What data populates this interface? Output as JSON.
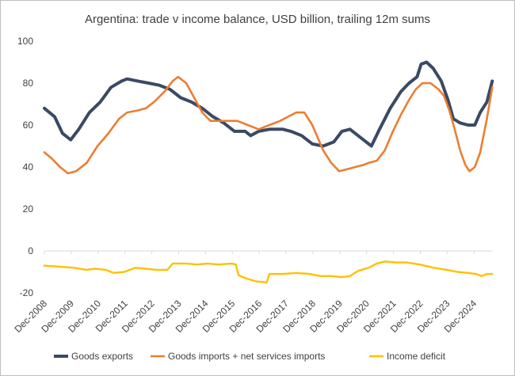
{
  "chart_data": {
    "type": "line",
    "title": "Argentina: trade v income balance, USD billion, trailing 12m sums",
    "xlabel": "",
    "ylabel": "",
    "ylim": [
      -20,
      100
    ],
    "yticks": [
      -20,
      0,
      20,
      40,
      60,
      80,
      100
    ],
    "xlim": [
      2008.92,
      2025.62
    ],
    "x_ticks": [
      {
        "x": 2008.92,
        "label": "Dec-2008"
      },
      {
        "x": 2009.92,
        "label": "Dec-2009"
      },
      {
        "x": 2010.92,
        "label": "Dec-2010"
      },
      {
        "x": 2011.92,
        "label": "Dec-2011"
      },
      {
        "x": 2012.92,
        "label": "Dec-2012"
      },
      {
        "x": 2013.92,
        "label": "Dec-2013"
      },
      {
        "x": 2014.92,
        "label": "Dec-2014"
      },
      {
        "x": 2015.92,
        "label": "Dec-2015"
      },
      {
        "x": 2016.92,
        "label": "Dec-2016"
      },
      {
        "x": 2017.92,
        "label": "Dec-2017"
      },
      {
        "x": 2018.92,
        "label": "Dec-2018"
      },
      {
        "x": 2019.92,
        "label": "Dec-2019"
      },
      {
        "x": 2020.92,
        "label": "Dec-2020"
      },
      {
        "x": 2021.92,
        "label": "Dec-2021"
      },
      {
        "x": 2022.92,
        "label": "Dec-2022"
      },
      {
        "x": 2023.92,
        "label": "Dec-2023"
      },
      {
        "x": 2024.92,
        "label": "Dec-2024"
      }
    ],
    "grid": false,
    "legend": "bottom",
    "series": [
      {
        "name": "Goods exports",
        "color": "#3a4a63",
        "points": [
          [
            2008.92,
            68
          ],
          [
            2009.3,
            64
          ],
          [
            2009.6,
            56
          ],
          [
            2009.9,
            53
          ],
          [
            2010.2,
            58
          ],
          [
            2010.6,
            66
          ],
          [
            2011.0,
            71
          ],
          [
            2011.4,
            78
          ],
          [
            2011.8,
            81
          ],
          [
            2012.0,
            82
          ],
          [
            2012.4,
            81
          ],
          [
            2012.8,
            80
          ],
          [
            2013.2,
            79
          ],
          [
            2013.6,
            77
          ],
          [
            2014.0,
            73
          ],
          [
            2014.4,
            71
          ],
          [
            2014.8,
            68
          ],
          [
            2015.2,
            64
          ],
          [
            2015.6,
            61
          ],
          [
            2016.0,
            57
          ],
          [
            2016.4,
            57
          ],
          [
            2016.6,
            55
          ],
          [
            2016.9,
            57
          ],
          [
            2017.3,
            58
          ],
          [
            2017.8,
            58
          ],
          [
            2018.1,
            57
          ],
          [
            2018.5,
            55
          ],
          [
            2018.9,
            51
          ],
          [
            2019.3,
            50
          ],
          [
            2019.7,
            52
          ],
          [
            2020.0,
            57
          ],
          [
            2020.3,
            58
          ],
          [
            2020.6,
            55
          ],
          [
            2020.9,
            52
          ],
          [
            2021.1,
            50
          ],
          [
            2021.4,
            58
          ],
          [
            2021.8,
            68
          ],
          [
            2022.2,
            76
          ],
          [
            2022.5,
            80
          ],
          [
            2022.8,
            83
          ],
          [
            2022.95,
            89
          ],
          [
            2023.15,
            90
          ],
          [
            2023.4,
            87
          ],
          [
            2023.7,
            81
          ],
          [
            2023.95,
            72
          ],
          [
            2024.15,
            63
          ],
          [
            2024.4,
            61
          ],
          [
            2024.7,
            60
          ],
          [
            2024.95,
            60
          ],
          [
            2025.15,
            66
          ],
          [
            2025.4,
            71
          ],
          [
            2025.6,
            81
          ]
        ]
      },
      {
        "name": "Goods imports + net services imports",
        "color": "#ed7d31",
        "points": [
          [
            2008.92,
            47
          ],
          [
            2009.2,
            44
          ],
          [
            2009.5,
            40
          ],
          [
            2009.8,
            37
          ],
          [
            2010.1,
            38
          ],
          [
            2010.5,
            42
          ],
          [
            2010.9,
            50
          ],
          [
            2011.3,
            56
          ],
          [
            2011.7,
            63
          ],
          [
            2012.0,
            66
          ],
          [
            2012.4,
            67
          ],
          [
            2012.7,
            68
          ],
          [
            2013.0,
            71
          ],
          [
            2013.4,
            76
          ],
          [
            2013.7,
            81
          ],
          [
            2013.9,
            83
          ],
          [
            2014.2,
            80
          ],
          [
            2014.5,
            73
          ],
          [
            2014.8,
            66
          ],
          [
            2015.1,
            62
          ],
          [
            2015.5,
            62
          ],
          [
            2015.8,
            62
          ],
          [
            2016.1,
            62
          ],
          [
            2016.5,
            60
          ],
          [
            2016.9,
            58
          ],
          [
            2017.3,
            60
          ],
          [
            2017.7,
            62
          ],
          [
            2018.0,
            64
          ],
          [
            2018.3,
            66
          ],
          [
            2018.6,
            66
          ],
          [
            2018.9,
            60
          ],
          [
            2019.3,
            48
          ],
          [
            2019.6,
            42
          ],
          [
            2019.9,
            38
          ],
          [
            2020.2,
            39
          ],
          [
            2020.5,
            40
          ],
          [
            2020.8,
            41
          ],
          [
            2021.0,
            42
          ],
          [
            2021.3,
            43
          ],
          [
            2021.6,
            48
          ],
          [
            2021.9,
            57
          ],
          [
            2022.2,
            65
          ],
          [
            2022.5,
            72
          ],
          [
            2022.75,
            77
          ],
          [
            2023.0,
            80
          ],
          [
            2023.3,
            80
          ],
          [
            2023.6,
            77
          ],
          [
            2023.8,
            74
          ],
          [
            2024.0,
            67
          ],
          [
            2024.2,
            58
          ],
          [
            2024.4,
            48
          ],
          [
            2024.6,
            41
          ],
          [
            2024.75,
            38
          ],
          [
            2024.95,
            40
          ],
          [
            2025.15,
            47
          ],
          [
            2025.4,
            63
          ],
          [
            2025.6,
            78
          ]
        ]
      },
      {
        "name": "Income deficit",
        "color": "#ffc000",
        "points": [
          [
            2008.92,
            -7
          ],
          [
            2009.5,
            -7.5
          ],
          [
            2010.0,
            -8
          ],
          [
            2010.5,
            -9
          ],
          [
            2010.8,
            -8.5
          ],
          [
            2011.2,
            -9
          ],
          [
            2011.5,
            -10.5
          ],
          [
            2011.9,
            -10
          ],
          [
            2012.3,
            -8
          ],
          [
            2012.7,
            -8.5
          ],
          [
            2013.1,
            -9
          ],
          [
            2013.5,
            -9
          ],
          [
            2013.7,
            -6
          ],
          [
            2014.2,
            -6
          ],
          [
            2014.6,
            -6.5
          ],
          [
            2015.0,
            -6
          ],
          [
            2015.4,
            -6.5
          ],
          [
            2015.9,
            -6
          ],
          [
            2016.05,
            -6.5
          ],
          [
            2016.15,
            -11.5
          ],
          [
            2016.4,
            -13
          ],
          [
            2016.8,
            -14.5
          ],
          [
            2017.2,
            -15
          ],
          [
            2017.3,
            -11
          ],
          [
            2017.8,
            -11
          ],
          [
            2018.3,
            -10.5
          ],
          [
            2018.8,
            -11
          ],
          [
            2019.2,
            -12
          ],
          [
            2019.6,
            -12
          ],
          [
            2020.0,
            -12.5
          ],
          [
            2020.3,
            -12
          ],
          [
            2020.6,
            -9.5
          ],
          [
            2021.0,
            -8
          ],
          [
            2021.3,
            -6
          ],
          [
            2021.6,
            -5
          ],
          [
            2022.0,
            -5.5
          ],
          [
            2022.4,
            -5.5
          ],
          [
            2022.9,
            -6.5
          ],
          [
            2023.4,
            -8
          ],
          [
            2023.9,
            -9
          ],
          [
            2024.3,
            -10
          ],
          [
            2024.7,
            -10.5
          ],
          [
            2025.0,
            -11
          ],
          [
            2025.2,
            -12
          ],
          [
            2025.4,
            -11
          ],
          [
            2025.6,
            -11
          ]
        ]
      }
    ]
  }
}
